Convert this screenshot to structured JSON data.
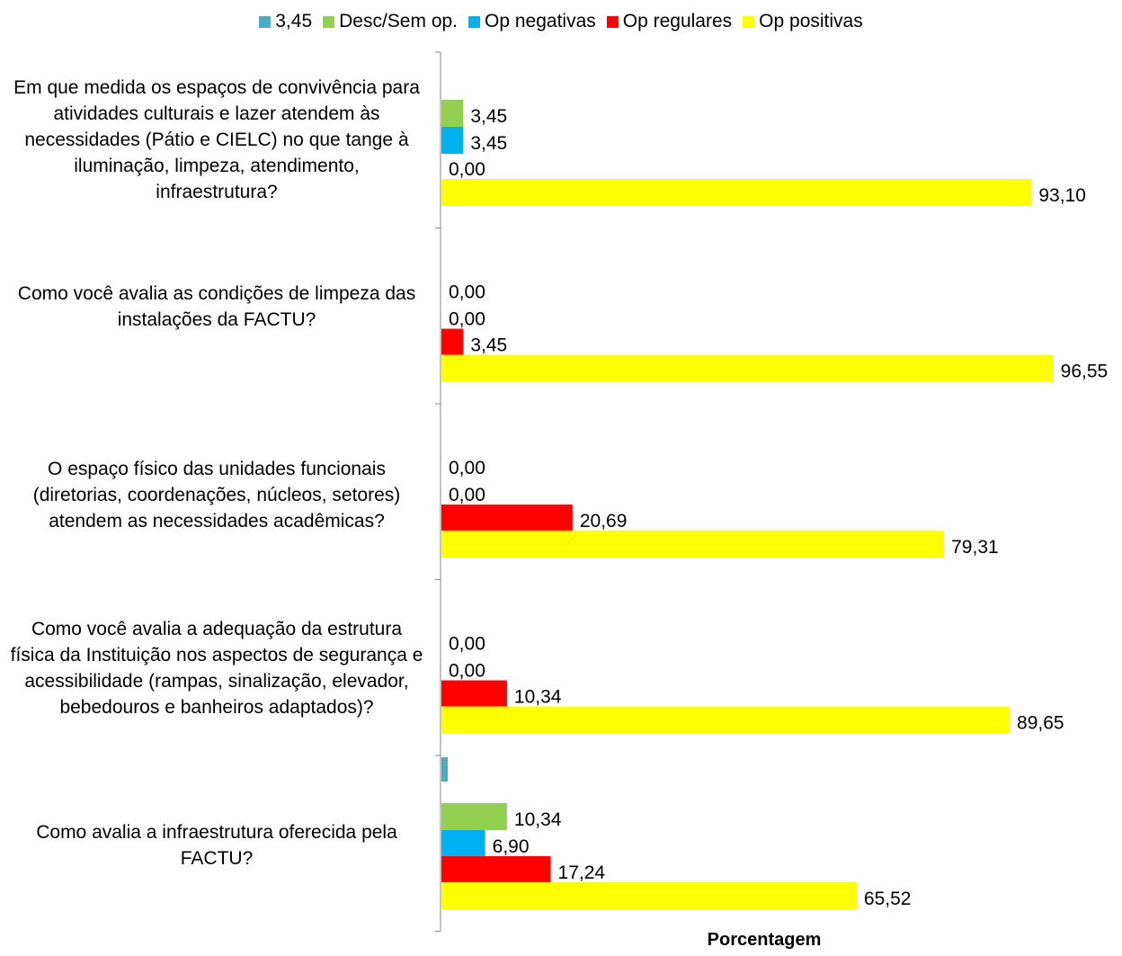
{
  "chart_data": {
    "type": "bar",
    "orientation": "horizontal",
    "xlabel": "Porcentagem",
    "legend_position": "top",
    "grid": false,
    "categories": [
      "Em que medida os espaços de convivência para atividades culturais e lazer atendem às necessidades (Pátio e CIELC) no que tange à iluminação, limpeza, atendimento, infraestrutura?",
      "Como você avalia as condições de limpeza das instalações da FACTU?",
      "O espaço físico das unidades funcionais (diretorias, coordenações, núcleos, setores) atendem as necessidades acadêmicas?",
      "Como você avalia a adequação da estrutura física da Instituição nos aspectos de segurança e acessibilidade (rampas, sinalização, elevador, bebedouros e banheiros adaptados)?",
      "Como avalia a infraestrutura oferecida pela FACTU?"
    ],
    "category_lines": [
      [
        "Em que medida os espaços de convivência para",
        "atividades culturais e lazer atendem às",
        "necessidades (Pátio e CIELC) no que tange à",
        "iluminação, limpeza, atendimento,",
        "infraestrutura?"
      ],
      [
        "Como você avalia as condições de limpeza das",
        "instalações da FACTU?"
      ],
      [
        "O espaço físico das unidades funcionais",
        "(diretorias, coordenações, núcleos, setores)",
        "atendem as necessidades acadêmicas?"
      ],
      [
        "Como você avalia a adequação da estrutura",
        "física da Instituição nos aspectos de segurança e",
        "acessibilidade (rampas, sinalização, elevador,",
        "bebedouros e banheiros adaptados)?"
      ],
      [
        "Como avalia a infraestrutura oferecida pela",
        "FACTU?"
      ]
    ],
    "series": [
      {
        "name": "3,45",
        "color": "#4bacc6",
        "values": [
          null,
          null,
          null,
          null,
          1.0
        ],
        "labels": [
          null,
          null,
          null,
          null,
          null
        ]
      },
      {
        "name": "Desc/Sem op.",
        "color": "#92d050",
        "values": [
          3.45,
          0,
          0,
          0,
          10.34
        ],
        "labels": [
          "3,45",
          "0,00",
          "0,00",
          "0,00",
          "10,34"
        ]
      },
      {
        "name": "Op negativas",
        "color": "#00b0f0",
        "values": [
          3.45,
          0,
          0,
          0,
          6.9
        ],
        "labels": [
          "3,45",
          "0,00",
          "0,00",
          "0,00",
          "6,90"
        ]
      },
      {
        "name": "Op regulares",
        "color": "#ff0000",
        "values": [
          0,
          3.45,
          20.69,
          10.34,
          17.24
        ],
        "labels": [
          "0,00",
          "3,45",
          "20,69",
          "10,34",
          "17,24"
        ]
      },
      {
        "name": "Op positivas",
        "color": "#ffff00",
        "values": [
          93.1,
          96.55,
          79.31,
          89.65,
          65.52
        ],
        "labels": [
          "93,10",
          "96,55",
          "79,31",
          "89,65",
          "65,52"
        ]
      }
    ],
    "xlim": [
      0,
      100
    ]
  }
}
